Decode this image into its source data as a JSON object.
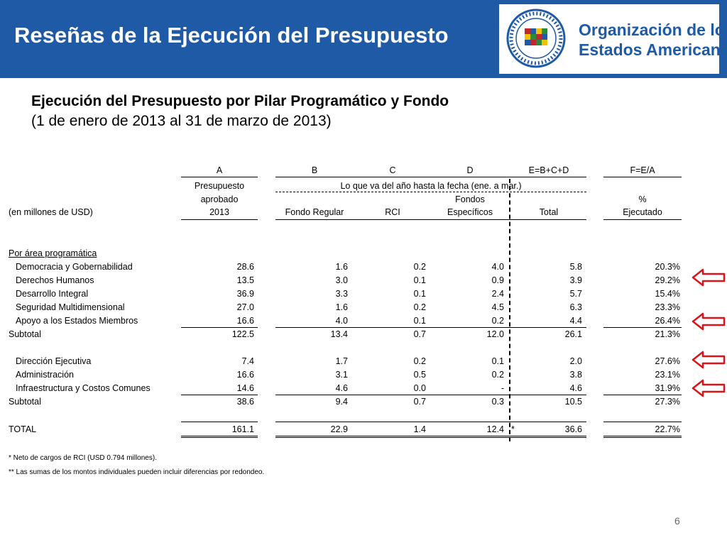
{
  "header": {
    "title": "Reseñas de la Ejecución del Presupuesto",
    "org_line1": "Organización de los",
    "org_line2": "Estados Americanos",
    "seal_text_top": "ORGANIZACION DE LOS ESTADOS AMERICANOS",
    "seal_text_bottom": "ORGANIZATION OF AMERICAN STATES"
  },
  "subtitle": {
    "line1": "Ejecución del Presupuesto por Pilar Programático y Fondo",
    "line2": "(1 de enero de 2013 al 31 de marzo de 2013)"
  },
  "table": {
    "letters": {
      "a": "A",
      "b": "B",
      "c": "C",
      "d": "D",
      "e": "E=B+C+D",
      "f": "F=E/A"
    },
    "head": {
      "presupuesto": "Presupuesto",
      "aprobado": "aprobado",
      "year": "2013",
      "span_label": "Lo que va del año hasta la fecha (ene. a mar.)",
      "unit_label": "(en millones de USD)",
      "fondo_regular": "Fondo Regular",
      "rci": "RCI",
      "fondos": "Fondos",
      "especificos": "Específicos",
      "total": "Total",
      "pct": "%",
      "ejecutado": "Ejecutado"
    },
    "section_label": "Por área programática",
    "rows1": [
      {
        "label": "Democracia y Gobernabilidad",
        "a": "28.6",
        "b": "1.6",
        "c": "0.2",
        "d": "4.0",
        "e": "5.8",
        "f": "20.3%"
      },
      {
        "label": "Derechos Humanos",
        "a": "13.5",
        "b": "3.0",
        "c": "0.1",
        "d": "0.9",
        "e": "3.9",
        "f": "29.2%"
      },
      {
        "label": "Desarrollo Integral",
        "a": "36.9",
        "b": "3.3",
        "c": "0.1",
        "d": "2.4",
        "e": "5.7",
        "f": "15.4%"
      },
      {
        "label": "Seguridad Multidimensional",
        "a": "27.0",
        "b": "1.6",
        "c": "0.2",
        "d": "4.5",
        "e": "6.3",
        "f": "23.3%"
      },
      {
        "label": "Apoyo a los Estados Miembros",
        "a": "16.6",
        "b": "4.0",
        "c": "0.1",
        "d": "0.2",
        "e": "4.4",
        "f": "26.4%"
      }
    ],
    "subtotal1": {
      "label": "Subtotal",
      "a": "122.5",
      "b": "13.4",
      "c": "0.7",
      "d": "12.0",
      "e": "26.1",
      "f": "21.3%"
    },
    "rows2": [
      {
        "label": "Dirección Ejecutiva",
        "a": "7.4",
        "b": "1.7",
        "c": "0.2",
        "d": "0.1",
        "e": "2.0",
        "f": "27.6%"
      },
      {
        "label": "Administración",
        "a": "16.6",
        "b": "3.1",
        "c": "0.5",
        "d": "0.2",
        "e": "3.8",
        "f": "23.1%"
      },
      {
        "label": "Infraestructura y Costos Comunes",
        "a": "14.6",
        "b": "4.6",
        "c": "0.0",
        "d": "-",
        "e": "4.6",
        "f": "31.9%"
      }
    ],
    "subtotal2": {
      "label": "Subtotal",
      "a": "38.6",
      "b": "9.4",
      "c": "0.7",
      "d": "0.3",
      "e": "10.5",
      "f": "27.3%"
    },
    "total": {
      "label": "TOTAL",
      "a": "161.1",
      "b": "22.9",
      "c": "1.4",
      "d": "12.4",
      "star": "*",
      "e": "36.6",
      "f": "22.7%"
    }
  },
  "footnotes": {
    "fn1": "* Neto de cargos de RCI (USD 0.794 millones).",
    "fn2": "** Las sumas de los montos individuales pueden incluir diferencias por redondeo."
  },
  "page_number": "6",
  "colors": {
    "header_bg": "#1f5aa6",
    "arrow": "#d9141b"
  }
}
